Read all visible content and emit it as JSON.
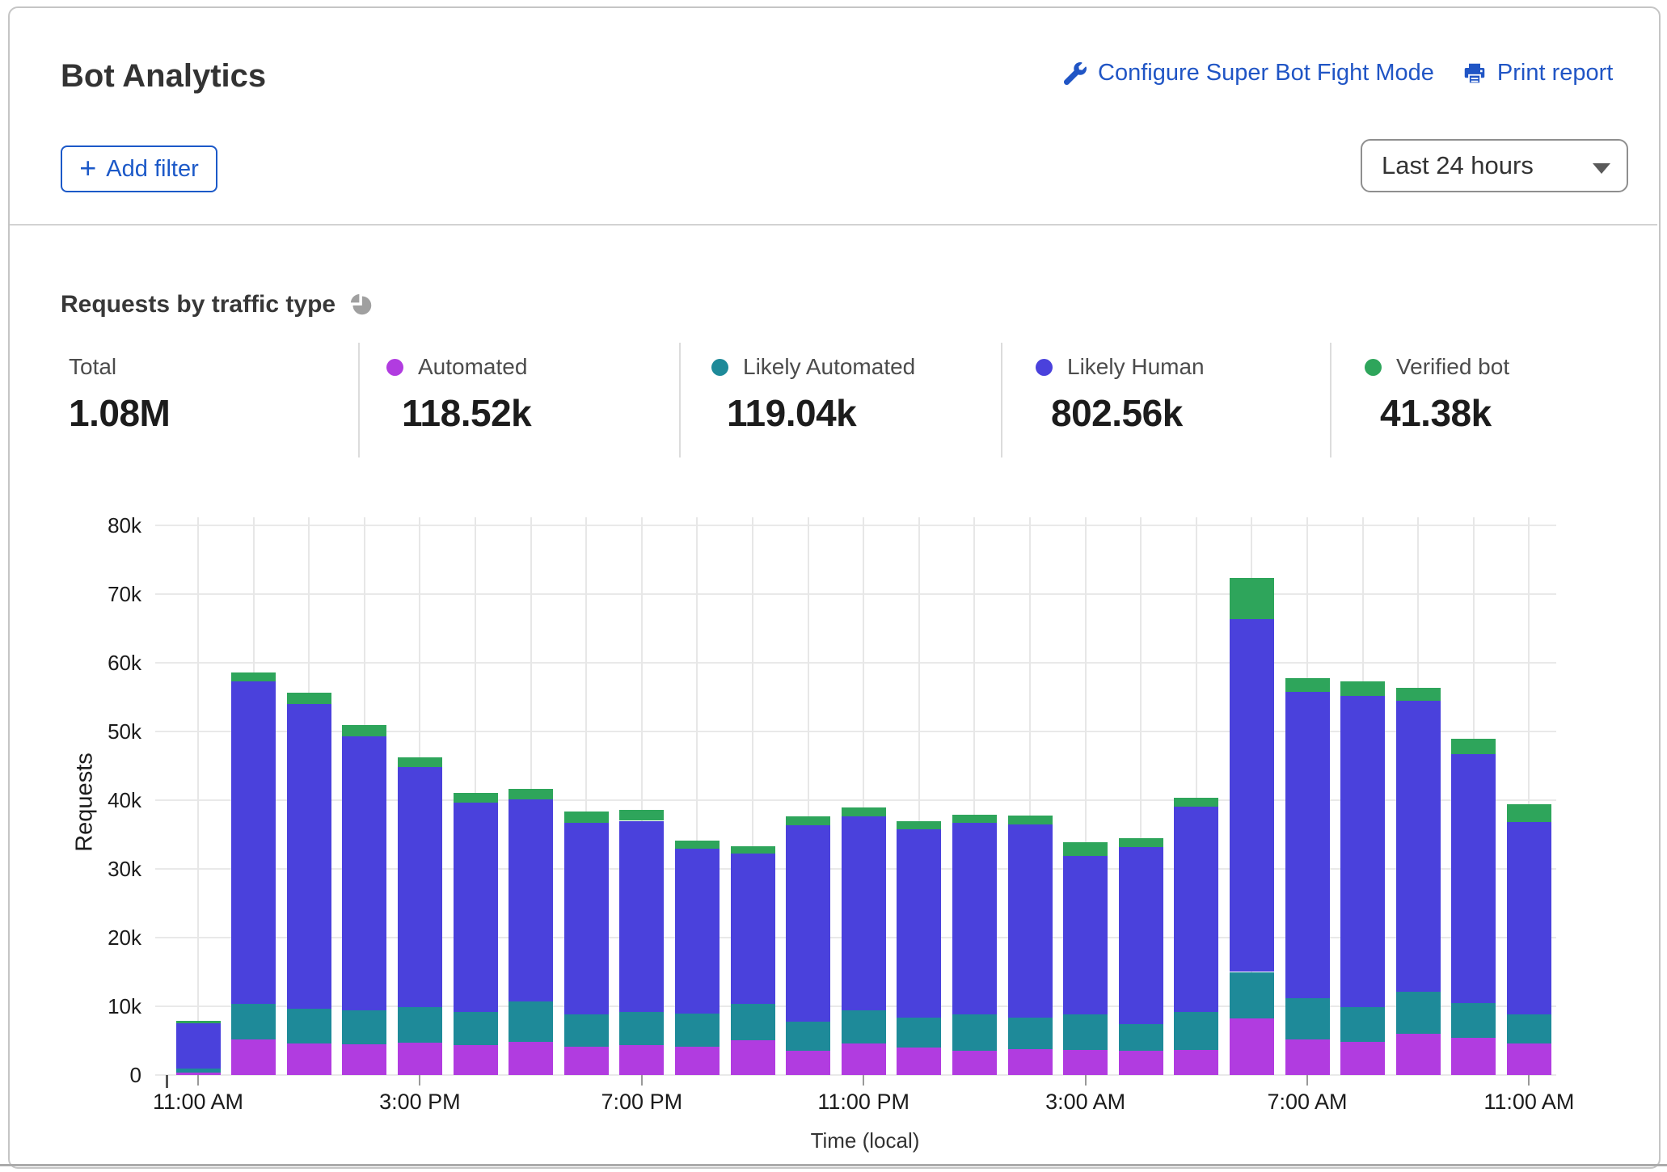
{
  "header": {
    "title": "Bot Analytics",
    "configure_link": "Configure Super Bot Fight Mode",
    "print_link": "Print report",
    "add_filter": "Add filter",
    "time_range": "Last 24 hours"
  },
  "section": {
    "title": "Requests by traffic type"
  },
  "stats": [
    {
      "label": "Total",
      "value": "1.08M",
      "color": null
    },
    {
      "label": "Automated",
      "value": "118.52k",
      "color": "#b13ce0"
    },
    {
      "label": "Likely Automated",
      "value": "119.04k",
      "color": "#1e8a99"
    },
    {
      "label": "Likely Human",
      "value": "802.56k",
      "color": "#4a41dc"
    },
    {
      "label": "Verified bot",
      "value": "41.38k",
      "color": "#2ea55b"
    }
  ],
  "chart_data": {
    "type": "bar",
    "stacked": true,
    "title": "Requests by traffic type",
    "xlabel": "Time (local)",
    "ylabel": "Requests",
    "ylim": [
      0,
      80000
    ],
    "grid": true,
    "y_ticks": [
      "0",
      "10k",
      "20k",
      "30k",
      "40k",
      "50k",
      "60k",
      "70k",
      "80k"
    ],
    "x": [
      "11:00 AM",
      "12:00 PM",
      "1:00 PM",
      "2:00 PM",
      "3:00 PM",
      "4:00 PM",
      "5:00 PM",
      "6:00 PM",
      "7:00 PM",
      "8:00 PM",
      "9:00 PM",
      "10:00 PM",
      "11:00 PM",
      "12:00 AM",
      "1:00 AM",
      "2:00 AM",
      "3:00 AM",
      "4:00 AM",
      "5:00 AM",
      "6:00 AM",
      "7:00 AM",
      "8:00 AM",
      "9:00 AM",
      "10:00 AM",
      "11:00 AM"
    ],
    "x_tick_labels": [
      "11:00 AM",
      "3:00 PM",
      "7:00 PM",
      "11:00 PM",
      "3:00 AM",
      "7:00 AM",
      "11:00 AM"
    ],
    "x_tick_indices": [
      0,
      4,
      8,
      12,
      16,
      20,
      24
    ],
    "series": [
      {
        "name": "Automated",
        "color": "#b13ce0",
        "values": [
          400,
          5200,
          4600,
          4500,
          4700,
          4400,
          4800,
          4100,
          4400,
          4100,
          5100,
          3500,
          4600,
          4000,
          3500,
          3800,
          3700,
          3500,
          3700,
          8200,
          5200,
          4800,
          6000,
          5400,
          4600
        ]
      },
      {
        "name": "Likely Automated",
        "color": "#1e8a99",
        "values": [
          600,
          5200,
          5100,
          4900,
          5200,
          4800,
          5900,
          4700,
          4800,
          4800,
          5300,
          4300,
          4800,
          4400,
          5300,
          4500,
          5100,
          3900,
          5500,
          6800,
          6000,
          5100,
          6100,
          5100,
          4200
        ]
      },
      {
        "name": "Likely Human",
        "color": "#4a41dc",
        "values": [
          6500,
          46900,
          44300,
          39900,
          34900,
          30500,
          29400,
          27900,
          27800,
          24000,
          21800,
          28500,
          28300,
          27400,
          27900,
          28200,
          23100,
          25800,
          29900,
          51400,
          44600,
          45300,
          42400,
          36200,
          28000
        ]
      },
      {
        "name": "Verified bot",
        "color": "#2ea55b",
        "values": [
          400,
          1300,
          1600,
          1700,
          1400,
          1400,
          1500,
          1600,
          1600,
          1200,
          1100,
          1300,
          1300,
          1200,
          1200,
          1300,
          2000,
          1300,
          1300,
          5900,
          2000,
          2100,
          1900,
          2200,
          2600
        ]
      }
    ]
  }
}
